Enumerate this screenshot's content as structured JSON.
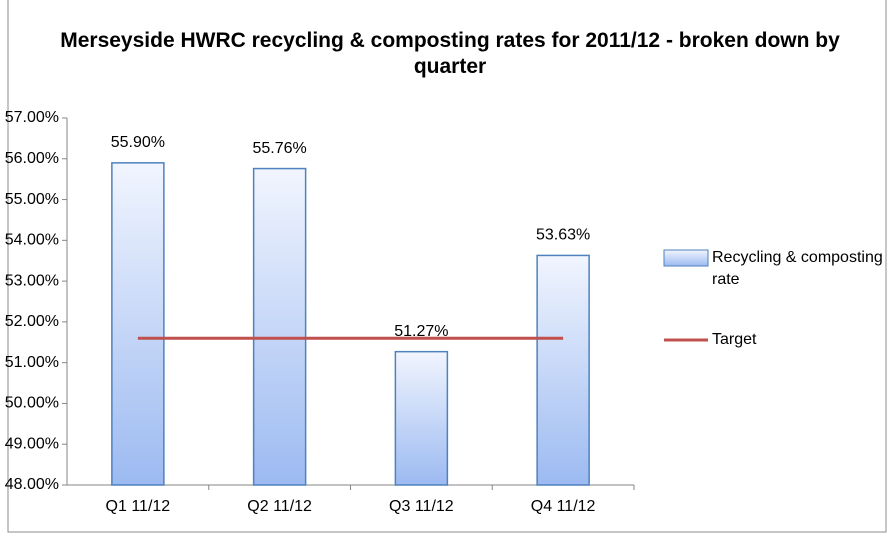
{
  "chart_data": {
    "type": "bar",
    "title": "Merseyside HWRC recycling & composting rates for 2011/12 - broken down by quarter",
    "categories": [
      "Q1 11/12",
      "Q2 11/12",
      "Q3 11/12",
      "Q4 11/12"
    ],
    "series": [
      {
        "name": "Recycling & composting rate",
        "type": "bar",
        "color": "#4f81bd",
        "values": [
          55.9,
          55.76,
          51.27,
          53.63
        ],
        "value_labels": [
          "55.90%",
          "55.76%",
          "51.27%",
          "53.63%"
        ]
      },
      {
        "name": "Target",
        "type": "line",
        "color": "#c0504d",
        "values": [
          51.6,
          51.6,
          51.6,
          51.6
        ]
      }
    ],
    "ylim": [
      48,
      57
    ],
    "yticks": [
      {
        "value": 48,
        "label": "48.00%"
      },
      {
        "value": 49,
        "label": "49.00%"
      },
      {
        "value": 50,
        "label": "50.00%"
      },
      {
        "value": 51,
        "label": "51.00%"
      },
      {
        "value": 52,
        "label": "52.00%"
      },
      {
        "value": 53,
        "label": "53.00%"
      },
      {
        "value": 54,
        "label": "54.00%"
      },
      {
        "value": 55,
        "label": "55.00%"
      },
      {
        "value": 56,
        "label": "56.00%"
      },
      {
        "value": 57,
        "label": "57.00%"
      }
    ],
    "grid": false,
    "legend": "right"
  }
}
